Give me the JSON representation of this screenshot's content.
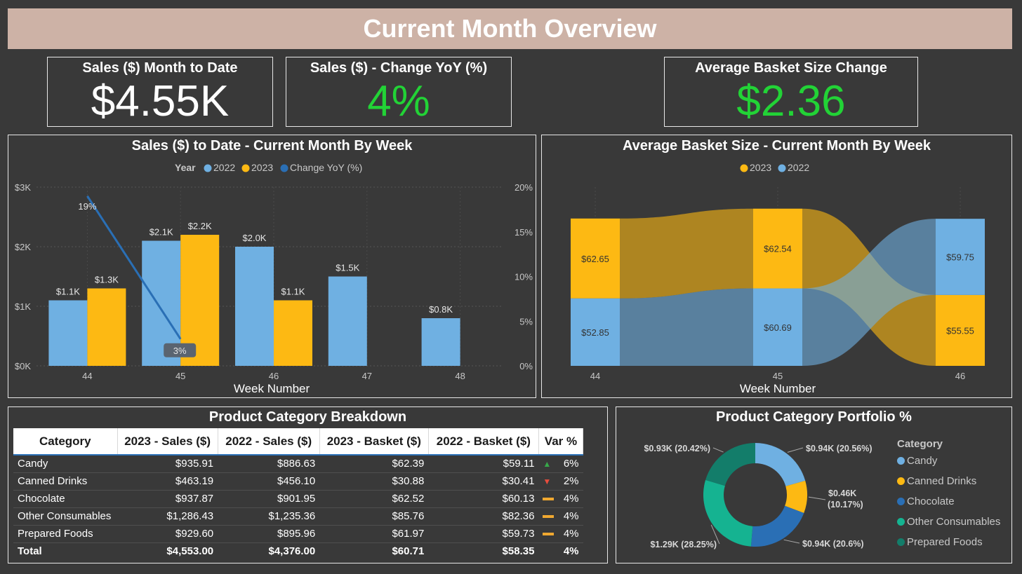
{
  "header": {
    "title": "Current Month Overview"
  },
  "kpis": {
    "sales_mtd": {
      "title": "Sales ($) Month to Date",
      "value": "$4.55K"
    },
    "sales_yoy": {
      "title": "Sales ($) - Change YoY (%)",
      "value": "4%"
    },
    "basket_change": {
      "title": "Average Basket Size Change",
      "value": "$2.36"
    }
  },
  "colors": {
    "y2022": "#6fb0e2",
    "y2023": "#fdb913",
    "line": "#2a6fb5",
    "positive": "#22d336",
    "banner": "#cdb2a6"
  },
  "sales_chart": {
    "title": "Sales ($) to Date - Current Month By Week",
    "legend_title": "Year",
    "legend": [
      "2022",
      "2023",
      "Change YoY (%)"
    ],
    "xlabel": "Week Number",
    "y_ticks": [
      "$0K",
      "$1K",
      "$2K",
      "$3K"
    ],
    "y2_ticks": [
      "0%",
      "5%",
      "10%",
      "15%",
      "20%"
    ]
  },
  "basket_chart": {
    "title": "Average Basket Size - Current Month By Week",
    "legend": [
      "2023",
      "2022"
    ],
    "xlabel": "Week Number"
  },
  "chart_data": [
    {
      "type": "bar",
      "title": "Sales ($) to Date - Current Month By Week",
      "xlabel": "Week Number",
      "categories": [
        "44",
        "45",
        "46",
        "47",
        "48"
      ],
      "ylim": [
        0,
        3000
      ],
      "y2lim": [
        0,
        20
      ],
      "series": [
        {
          "name": "2022",
          "values": [
            1100,
            2100,
            2000,
            1500,
            800
          ],
          "labels": [
            "$1.1K",
            "$2.1K",
            "$2.0K",
            "$1.5K",
            "$0.8K"
          ]
        },
        {
          "name": "2023",
          "values": [
            1300,
            2200,
            1100,
            null,
            null
          ],
          "labels": [
            "$1.3K",
            "$2.2K",
            "$1.1K",
            "",
            ""
          ]
        },
        {
          "name": "Change YoY (%)",
          "type": "line",
          "axis": "y2",
          "x": [
            "44",
            "45"
          ],
          "values": [
            19,
            3
          ],
          "labels": [
            "19%",
            "3%"
          ]
        }
      ]
    },
    {
      "type": "ribbon",
      "title": "Average Basket Size - Current Month By Week",
      "xlabel": "Week Number",
      "categories": [
        "44",
        "45",
        "46"
      ],
      "series": [
        {
          "name": "2023",
          "values": [
            62.65,
            62.54,
            55.55
          ]
        },
        {
          "name": "2022",
          "values": [
            52.85,
            60.69,
            59.75
          ]
        }
      ]
    },
    {
      "type": "pie",
      "title": "Product Category Portfolio %",
      "donut": true,
      "legend_title": "Category",
      "slices": [
        {
          "name": "Candy",
          "value": 0.94,
          "label": "$0.94K (20.56%)",
          "color": "#6fb0e2"
        },
        {
          "name": "Canned Drinks",
          "value": 0.46,
          "label": "$0.46K (10.17%)",
          "color": "#fdb913"
        },
        {
          "name": "Chocolate",
          "value": 0.94,
          "label": "$0.94K (20.6%)",
          "color": "#2a6fb5"
        },
        {
          "name": "Other Consumables",
          "value": 1.29,
          "label": "$1.29K (28.25%)",
          "color": "#15b391"
        },
        {
          "name": "Prepared Foods",
          "value": 0.93,
          "label": "$0.93K (20.42%)",
          "color": "#137d6a"
        }
      ]
    }
  ],
  "table": {
    "title": "Product Category Breakdown",
    "columns": [
      "Category",
      "2023 - Sales ($)",
      "2022 - Sales ($)",
      "2023 - Basket ($)",
      "2022 - Basket ($)",
      "Var %"
    ],
    "rows": [
      {
        "category": "Candy",
        "s2023": "$935.91",
        "s2022": "$886.63",
        "b2023": "$62.39",
        "b2022": "$59.11",
        "icon": "up-arrow-icon",
        "var": "6%"
      },
      {
        "category": "Canned Drinks",
        "s2023": "$463.19",
        "s2022": "$456.10",
        "b2023": "$30.88",
        "b2022": "$30.41",
        "icon": "down-arrow-icon",
        "var": "2%"
      },
      {
        "category": "Chocolate",
        "s2023": "$937.87",
        "s2022": "$901.95",
        "b2023": "$62.52",
        "b2022": "$60.13",
        "icon": "dash-icon",
        "var": "4%"
      },
      {
        "category": "Other Consumables",
        "s2023": "$1,286.43",
        "s2022": "$1,235.36",
        "b2023": "$85.76",
        "b2022": "$82.36",
        "icon": "dash-icon",
        "var": "4%"
      },
      {
        "category": "Prepared Foods",
        "s2023": "$929.60",
        "s2022": "$895.96",
        "b2023": "$61.97",
        "b2022": "$59.73",
        "icon": "dash-icon",
        "var": "4%"
      }
    ],
    "total": {
      "category": "Total",
      "s2023": "$4,553.00",
      "s2022": "$4,376.00",
      "b2023": "$60.71",
      "b2022": "$58.35",
      "var": "4%"
    }
  },
  "portfolio": {
    "title": "Product Category Portfolio %",
    "legend_title": "Category"
  }
}
